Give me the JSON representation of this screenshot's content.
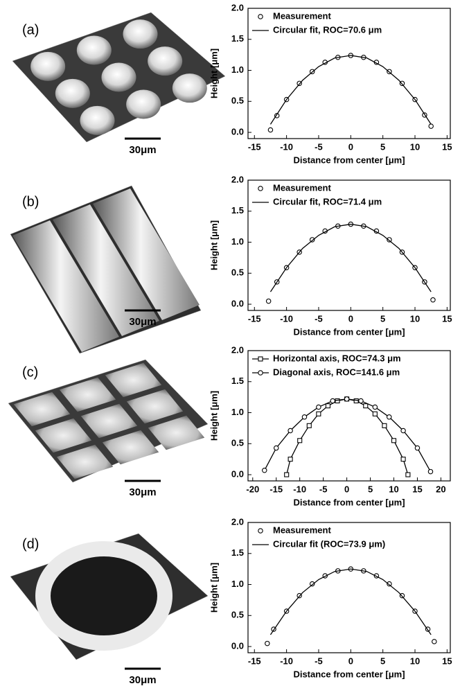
{
  "chart_data": [
    {
      "type": "scatter",
      "panel_label": "(a)",
      "scale_bar": "30μm",
      "xlabel": "Distance from center [μm]",
      "ylabel": "Height [μm]",
      "xlim": [
        -16,
        15.5
      ],
      "ylim": [
        -0.1,
        2.0
      ],
      "xticks": [
        -15,
        -10,
        -5,
        0,
        5,
        10,
        15
      ],
      "yticks": [
        {
          "value": 0,
          "label": "0.0"
        },
        0.5,
        {
          "value": 1,
          "label": "1.0"
        },
        1.5,
        {
          "value": 2,
          "label": "2.0"
        }
      ],
      "legend": "upper left",
      "series": [
        {
          "name": "Measurement",
          "color": "#000000",
          "marker": "circle",
          "line": false,
          "x": [
            -12.5,
            -11.5,
            -10,
            -8,
            -6,
            -4,
            -2,
            0,
            2,
            4,
            6,
            8,
            10,
            11.5,
            12.5
          ],
          "values": [
            0.04,
            0.27,
            0.53,
            0.79,
            0.98,
            1.13,
            1.21,
            1.24,
            1.21,
            1.13,
            0.98,
            0.79,
            0.53,
            0.28,
            0.1
          ]
        },
        {
          "name": "Circular fit, ROC=70.6 μm",
          "color": "#000000",
          "marker": "none",
          "line": true,
          "x": [
            -12.5,
            -10,
            -7.5,
            -5,
            -2.5,
            0,
            2.5,
            5,
            7.5,
            10,
            12.5
          ],
          "values": [
            0.13,
            0.53,
            0.84,
            1.06,
            1.2,
            1.24,
            1.2,
            1.06,
            0.84,
            0.53,
            0.13
          ]
        }
      ]
    },
    {
      "type": "scatter",
      "panel_label": "(b)",
      "scale_bar": "30μm",
      "xlabel": "Distance from center [μm]",
      "ylabel": "Height [μm]",
      "xlim": [
        -16,
        15.5
      ],
      "ylim": [
        -0.1,
        2.0
      ],
      "xticks": [
        -15,
        -10,
        -5,
        0,
        5,
        10,
        15
      ],
      "yticks": [
        {
          "value": 0,
          "label": "0.0"
        },
        0.5,
        {
          "value": 1,
          "label": "1.0"
        },
        1.5,
        {
          "value": 2,
          "label": "2.0"
        }
      ],
      "legend": "upper left",
      "series": [
        {
          "name": "Measurement",
          "color": "#000000",
          "marker": "circle",
          "line": false,
          "x": [
            -12.8,
            -11.5,
            -10,
            -8,
            -6,
            -4,
            -2,
            0,
            2,
            4,
            6,
            8,
            10,
            11.5,
            12.8
          ],
          "values": [
            0.05,
            0.36,
            0.59,
            0.84,
            1.04,
            1.18,
            1.26,
            1.29,
            1.26,
            1.18,
            1.04,
            0.84,
            0.59,
            0.36,
            0.07
          ]
        },
        {
          "name": "Circular fit, ROC=71.4 μm",
          "color": "#000000",
          "marker": "none",
          "line": true,
          "x": [
            -12.5,
            -10,
            -7.5,
            -5,
            -2.5,
            0,
            2.5,
            5,
            7.5,
            10,
            12.5
          ],
          "values": [
            0.2,
            0.59,
            0.9,
            1.11,
            1.25,
            1.29,
            1.25,
            1.11,
            0.9,
            0.59,
            0.2
          ]
        }
      ]
    },
    {
      "type": "scatter",
      "panel_label": "(c)",
      "scale_bar": "30μm",
      "xlabel": "Distance from center [μm]",
      "ylabel": "Height [μm]",
      "xlim": [
        -21,
        22
      ],
      "ylim": [
        -0.1,
        2.0
      ],
      "xticks": [
        -20,
        -15,
        -10,
        -5,
        0,
        5,
        10,
        15,
        20
      ],
      "yticks": [
        {
          "value": 0,
          "label": "0.0"
        },
        0.5,
        {
          "value": 1,
          "label": "1.0"
        },
        1.5,
        {
          "value": 2,
          "label": "2.0"
        }
      ],
      "legend": "upper left",
      "series": [
        {
          "name": "Horizontal axis, ROC=74.3 μm",
          "color": "#000000",
          "marker": "square",
          "line": true,
          "x": [
            -12.8,
            -12,
            -10,
            -8,
            -6,
            -4,
            -2,
            0,
            2,
            4,
            6,
            8,
            10,
            12,
            13
          ],
          "values": [
            0.0,
            0.25,
            0.55,
            0.79,
            0.98,
            1.11,
            1.19,
            1.22,
            1.19,
            1.11,
            0.98,
            0.79,
            0.55,
            0.25,
            0.0
          ]
        },
        {
          "name": "Diagonal axis, ROC=141.6 μm",
          "color": "#000000",
          "marker": "circle",
          "line": true,
          "x": [
            -17.5,
            -15,
            -12,
            -9,
            -6,
            -3,
            0,
            3,
            6,
            9,
            12,
            15,
            17.8
          ],
          "values": [
            0.07,
            0.43,
            0.71,
            0.93,
            1.09,
            1.19,
            1.22,
            1.19,
            1.09,
            0.93,
            0.71,
            0.43,
            0.05
          ]
        }
      ]
    },
    {
      "type": "scatter",
      "panel_label": "(d)",
      "scale_bar": "30μm",
      "xlabel": "Distance from center [μm]",
      "ylabel": "Height [μm]",
      "xlim": [
        -16,
        15.5
      ],
      "ylim": [
        -0.1,
        2.0
      ],
      "xticks": [
        -15,
        -10,
        -5,
        0,
        5,
        10,
        15
      ],
      "yticks": [
        {
          "value": 0,
          "label": "0.0"
        },
        0.5,
        {
          "value": 1,
          "label": "1.0"
        },
        1.5,
        {
          "value": 2,
          "label": "2.0"
        }
      ],
      "legend": "upper left",
      "series": [
        {
          "name": "Measurement",
          "color": "#000000",
          "marker": "circle",
          "line": false,
          "x": [
            -13,
            -12,
            -10,
            -8,
            -6,
            -4,
            -2,
            0,
            2,
            4,
            6,
            8,
            10,
            12,
            13
          ],
          "values": [
            0.05,
            0.28,
            0.57,
            0.82,
            1.01,
            1.14,
            1.22,
            1.25,
            1.22,
            1.14,
            1.01,
            0.82,
            0.57,
            0.28,
            0.08
          ]
        },
        {
          "name": "Circular fit (ROC=73.9 μm)",
          "color": "#000000",
          "marker": "none",
          "line": true,
          "x": [
            -12.5,
            -10,
            -7.5,
            -5,
            -2.5,
            0,
            2.5,
            5,
            7.5,
            10,
            12.5
          ],
          "values": [
            0.19,
            0.57,
            0.87,
            1.08,
            1.21,
            1.25,
            1.21,
            1.08,
            0.87,
            0.57,
            0.19
          ]
        }
      ]
    }
  ]
}
